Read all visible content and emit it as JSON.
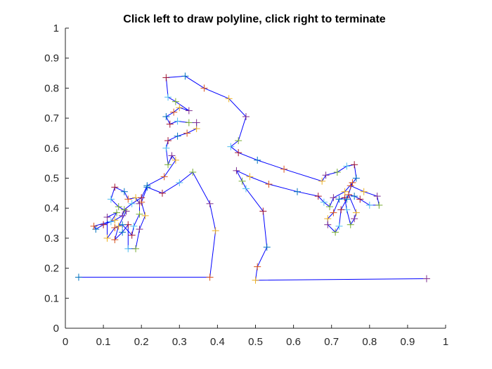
{
  "window": {
    "background": "#ffffff"
  },
  "chart_data": {
    "type": "line",
    "title": "Click left to draw polyline, click right to terminate",
    "xlabel": "",
    "ylabel": "",
    "xlim": [
      0,
      1
    ],
    "ylim": [
      0,
      1
    ],
    "xticks": [
      0,
      0.1,
      0.2,
      0.3,
      0.4,
      0.5,
      0.6,
      0.7,
      0.8,
      0.9,
      1
    ],
    "yticks": [
      0,
      0.1,
      0.2,
      0.3,
      0.4,
      0.5,
      0.6,
      0.7,
      0.8,
      0.9,
      1
    ],
    "xtick_labels": [
      "0",
      "0.1",
      "0.2",
      "0.3",
      "0.4",
      "0.5",
      "0.6",
      "0.7",
      "0.8",
      "0.9",
      "1"
    ],
    "ytick_labels": [
      "0",
      "0.1",
      "0.2",
      "0.3",
      "0.4",
      "0.5",
      "0.6",
      "0.7",
      "0.8",
      "0.9",
      "1"
    ],
    "grid": false,
    "line_color": "#0000ff",
    "marker": "+",
    "marker_colors": [
      "#0072bd",
      "#d95319",
      "#edb120",
      "#7e2f8e",
      "#77ac30",
      "#4dbeee",
      "#a2142f"
    ],
    "series": [
      {
        "points": [
          [
            0.035,
            0.17
          ],
          [
            0.38,
            0.17
          ],
          [
            0.395,
            0.325
          ],
          [
            0.38,
            0.415
          ],
          [
            0.335,
            0.52
          ],
          [
            0.3,
            0.485
          ],
          [
            0.255,
            0.45
          ],
          [
            0.215,
            0.47
          ],
          [
            0.2,
            0.42
          ],
          [
            0.21,
            0.375
          ],
          [
            0.195,
            0.33
          ],
          [
            0.185,
            0.265
          ],
          [
            0.165,
            0.265
          ],
          [
            0.165,
            0.345
          ],
          [
            0.15,
            0.32
          ],
          [
            0.13,
            0.295
          ],
          [
            0.14,
            0.34
          ],
          [
            0.16,
            0.39
          ],
          [
            0.14,
            0.405
          ],
          [
            0.12,
            0.43
          ],
          [
            0.13,
            0.47
          ],
          [
            0.155,
            0.455
          ],
          [
            0.165,
            0.43
          ],
          [
            0.185,
            0.435
          ],
          [
            0.195,
            0.415
          ],
          [
            0.195,
            0.38
          ],
          [
            0.18,
            0.34
          ],
          [
            0.175,
            0.31
          ],
          [
            0.15,
            0.345
          ],
          [
            0.13,
            0.335
          ],
          [
            0.11,
            0.3
          ],
          [
            0.11,
            0.37
          ],
          [
            0.135,
            0.385
          ],
          [
            0.12,
            0.355
          ],
          [
            0.1,
            0.345
          ],
          [
            0.08,
            0.33
          ],
          [
            0.075,
            0.34
          ],
          [
            0.13,
            0.36
          ],
          [
            0.15,
            0.375
          ],
          [
            0.155,
            0.395
          ],
          [
            0.175,
            0.415
          ],
          [
            0.2,
            0.435
          ],
          [
            0.215,
            0.475
          ],
          [
            0.26,
            0.505
          ],
          [
            0.29,
            0.56
          ],
          [
            0.28,
            0.575
          ],
          [
            0.27,
            0.545
          ],
          [
            0.265,
            0.6
          ],
          [
            0.27,
            0.625
          ],
          [
            0.295,
            0.64
          ],
          [
            0.32,
            0.65
          ],
          [
            0.345,
            0.665
          ],
          [
            0.345,
            0.685
          ],
          [
            0.325,
            0.685
          ],
          [
            0.295,
            0.69
          ],
          [
            0.275,
            0.68
          ],
          [
            0.265,
            0.705
          ],
          [
            0.285,
            0.72
          ],
          [
            0.3,
            0.735
          ],
          [
            0.325,
            0.725
          ],
          [
            0.29,
            0.755
          ],
          [
            0.27,
            0.77
          ],
          [
            0.265,
            0.835
          ],
          [
            0.315,
            0.84
          ],
          [
            0.365,
            0.8
          ],
          [
            0.43,
            0.765
          ],
          [
            0.475,
            0.705
          ],
          [
            0.455,
            0.625
          ],
          [
            0.435,
            0.605
          ],
          [
            0.455,
            0.585
          ],
          [
            0.505,
            0.56
          ],
          [
            0.575,
            0.53
          ],
          [
            0.675,
            0.49
          ],
          [
            0.685,
            0.51
          ],
          [
            0.715,
            0.52
          ],
          [
            0.74,
            0.54
          ],
          [
            0.76,
            0.545
          ],
          [
            0.765,
            0.5
          ],
          [
            0.75,
            0.475
          ],
          [
            0.785,
            0.455
          ],
          [
            0.82,
            0.44
          ],
          [
            0.825,
            0.41
          ],
          [
            0.8,
            0.41
          ],
          [
            0.775,
            0.43
          ],
          [
            0.76,
            0.44
          ],
          [
            0.745,
            0.445
          ],
          [
            0.765,
            0.385
          ],
          [
            0.76,
            0.365
          ],
          [
            0.75,
            0.345
          ],
          [
            0.74,
            0.395
          ],
          [
            0.735,
            0.435
          ],
          [
            0.72,
            0.43
          ],
          [
            0.705,
            0.385
          ],
          [
            0.69,
            0.365
          ],
          [
            0.69,
            0.345
          ],
          [
            0.71,
            0.32
          ],
          [
            0.72,
            0.34
          ],
          [
            0.725,
            0.395
          ],
          [
            0.74,
            0.43
          ],
          [
            0.755,
            0.485
          ],
          [
            0.735,
            0.455
          ],
          [
            0.705,
            0.435
          ],
          [
            0.695,
            0.405
          ],
          [
            0.68,
            0.42
          ],
          [
            0.665,
            0.44
          ],
          [
            0.61,
            0.455
          ],
          [
            0.535,
            0.48
          ],
          [
            0.485,
            0.505
          ],
          [
            0.45,
            0.525
          ],
          [
            0.465,
            0.49
          ],
          [
            0.475,
            0.465
          ],
          [
            0.52,
            0.39
          ],
          [
            0.53,
            0.27
          ],
          [
            0.505,
            0.205
          ],
          [
            0.5,
            0.16
          ],
          [
            0.95,
            0.165
          ]
        ]
      }
    ]
  }
}
